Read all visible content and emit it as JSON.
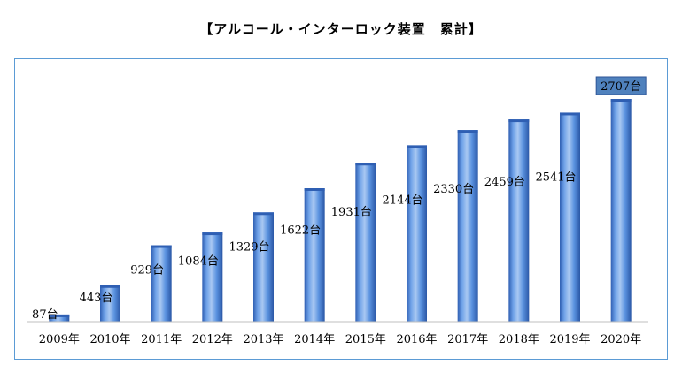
{
  "title": "【アルコール・インターロック装置　累計】",
  "chart_data": {
    "type": "bar",
    "title": "【アルコール・インターロック装置　累計】",
    "categories": [
      "2009年",
      "2010年",
      "2011年",
      "2012年",
      "2013年",
      "2014年",
      "2015年",
      "2016年",
      "2017年",
      "2018年",
      "2019年",
      "2020年"
    ],
    "values": [
      87,
      443,
      929,
      1084,
      1329,
      1622,
      1931,
      2144,
      2330,
      2459,
      2541,
      2707
    ],
    "data_labels": [
      "87台",
      "443台",
      "929台",
      "1084台",
      "1329台",
      "1622台",
      "1931台",
      "2144台",
      "2330台",
      "2459台",
      "2541台",
      "2707台"
    ],
    "highlighted_label_index": 11,
    "xlabel": "",
    "ylabel": "",
    "ylim": [
      0,
      2707
    ],
    "grid": false,
    "legend": "none",
    "colors": {
      "bar_light": "#a9c8f2",
      "bar_mid": "#5b93e0",
      "bar_dark": "#2f5fb3",
      "frame": "#5b9bd5",
      "highlight_bg": "#4f81bd",
      "highlight_border": "#2f5597",
      "highlight_text": "#ffffff"
    }
  }
}
